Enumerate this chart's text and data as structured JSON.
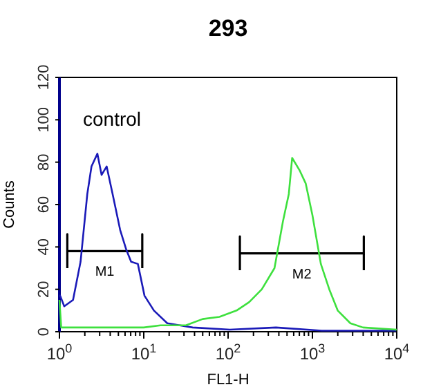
{
  "chart_data": {
    "type": "line",
    "title": "293",
    "xlabel": "FL1-H",
    "ylabel": "Counts",
    "log": "x",
    "grid": false,
    "annotations": [
      "control"
    ],
    "xlim": [
      1,
      10000
    ],
    "ylim": [
      0,
      120
    ],
    "yticks": [
      0,
      20,
      40,
      60,
      80,
      100,
      120
    ],
    "xticks": [
      {
        "value": 1,
        "label": "10$^{0}$"
      },
      {
        "value": 2,
        "label": null
      },
      {
        "value": 3,
        "label": null
      },
      {
        "value": 4,
        "label": null
      },
      {
        "value": 5,
        "label": null
      },
      {
        "value": 6,
        "label": null
      },
      {
        "value": 7,
        "label": null
      },
      {
        "value": 8,
        "label": null
      },
      {
        "value": 9,
        "label": null
      },
      {
        "value": 10,
        "label": "10$^{1}$"
      },
      {
        "value": 20,
        "label": null
      },
      {
        "value": 30,
        "label": null
      },
      {
        "value": 40,
        "label": null
      },
      {
        "value": 50,
        "label": null
      },
      {
        "value": 60,
        "label": null
      },
      {
        "value": 70,
        "label": null
      },
      {
        "value": 80,
        "label": null
      },
      {
        "value": 90,
        "label": null
      },
      {
        "value": 100,
        "label": "10$^{2}$"
      },
      {
        "value": 200,
        "label": null
      },
      {
        "value": 300,
        "label": null
      },
      {
        "value": 400,
        "label": null
      },
      {
        "value": 500,
        "label": null
      },
      {
        "value": 600,
        "label": null
      },
      {
        "value": 700,
        "label": null
      },
      {
        "value": 800,
        "label": null
      },
      {
        "value": 900,
        "label": null
      },
      {
        "value": 1000,
        "label": "10$^{3}$"
      },
      {
        "value": 2000,
        "label": null
      },
      {
        "value": 3000,
        "label": null
      },
      {
        "value": 4000,
        "label": null
      },
      {
        "value": 5000,
        "label": null
      },
      {
        "value": 6000,
        "label": null
      },
      {
        "value": 7000,
        "label": null
      },
      {
        "value": 8000,
        "label": null
      },
      {
        "value": 9000,
        "label": null
      },
      {
        "value": 10000,
        "label": "10$^{4}$"
      }
    ],
    "series": [
      {
        "name": "M1",
        "color": "#000000",
        "x": [
          1.24,
          1.24,
          1.24,
          9.6,
          9.6,
          9.6
        ],
        "values": [
          30,
          46,
          38,
          38,
          46,
          30
        ]
      },
      {
        "name": "M2",
        "color": "#000000",
        "x": [
          138,
          138,
          138,
          4070,
          4070,
          4070
        ],
        "values": [
          29,
          45,
          37,
          37,
          45,
          29
        ]
      },
      {
        "color": "#1a1ab8",
        "x": [
          1,
          1.02,
          1.14,
          1.45,
          1.78,
          2.14,
          2.4,
          2.82,
          3.16,
          3.63,
          4.27,
          5.25,
          6.17,
          7.08,
          8.51,
          10.2,
          13.2,
          19,
          38,
          105,
          370,
          1290,
          9800
        ],
        "values": [
          17,
          17,
          12,
          15,
          33,
          65,
          78,
          84,
          74,
          78,
          65,
          48,
          39,
          33,
          32,
          17,
          10,
          4,
          2,
          1,
          2,
          0.5,
          0.5
        ]
      },
      {
        "color": "#3ee03e",
        "x": [
          1,
          1.05,
          3.16,
          10,
          15.8,
          31.6,
          50,
          79,
          126,
          178,
          251,
          355,
          447,
          525,
          575,
          708,
          832,
          1000,
          1259,
          1585,
          1995,
          2818,
          3981,
          10000
        ],
        "values": [
          15,
          2,
          2,
          2,
          3,
          3,
          6,
          7,
          10,
          14,
          20,
          30,
          52,
          65,
          82,
          76,
          70,
          55,
          32,
          20,
          10,
          4,
          2,
          1
        ]
      }
    ]
  }
}
